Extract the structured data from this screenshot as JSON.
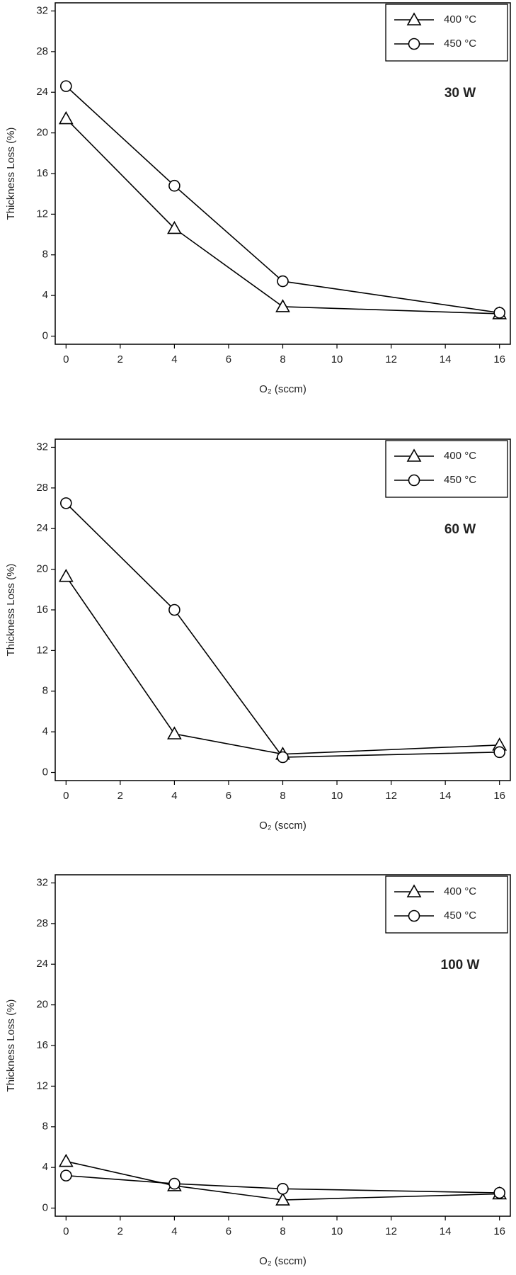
{
  "chart_data": [
    {
      "type": "line",
      "annotation": "30 W",
      "x_label": "O₂ (sccm)",
      "y_label": "Thickness Loss (%)",
      "x": [
        0,
        4,
        8,
        16
      ],
      "series": [
        {
          "name": "400 °C",
          "color": "#000000",
          "marker": "triangle",
          "values": [
            21.4,
            10.6,
            2.9,
            2.2
          ]
        },
        {
          "name": "450 °C",
          "color": "#000000",
          "marker": "circle",
          "values": [
            24.6,
            14.8,
            5.4,
            2.3
          ]
        }
      ],
      "xlim": [
        -0.4,
        16.4
      ],
      "xticks": [
        0,
        2,
        4,
        6,
        8,
        10,
        12,
        14,
        16
      ],
      "ylim": [
        -0.8,
        32.8
      ],
      "yticks": [
        0,
        4,
        8,
        12,
        16,
        20,
        24,
        28,
        32
      ],
      "legend": "upper right"
    },
    {
      "type": "line",
      "annotation": "60 W",
      "x_label": "O₂ (sccm)",
      "y_label": "Thickness Loss (%)",
      "x": [
        0,
        4,
        8,
        16
      ],
      "series": [
        {
          "name": "400 °C",
          "color": "#000000",
          "marker": "triangle",
          "values": [
            19.3,
            3.8,
            1.8,
            2.7
          ]
        },
        {
          "name": "450 °C",
          "color": "#000000",
          "marker": "circle",
          "values": [
            26.5,
            16.0,
            1.5,
            2.0
          ]
        }
      ],
      "xlim": [
        -0.4,
        16.4
      ],
      "xticks": [
        0,
        2,
        4,
        6,
        8,
        10,
        12,
        14,
        16
      ],
      "ylim": [
        -0.8,
        32.8
      ],
      "yticks": [
        0,
        4,
        8,
        12,
        16,
        20,
        24,
        28,
        32
      ],
      "legend": "upper right"
    },
    {
      "type": "line",
      "annotation": "100 W",
      "x_label": "O₂ (sccm)",
      "y_label": "Thickness Loss (%)",
      "x": [
        0,
        4,
        8,
        16
      ],
      "series": [
        {
          "name": "400 °C",
          "color": "#000000",
          "marker": "triangle",
          "values": [
            4.6,
            2.2,
            0.8,
            1.4
          ]
        },
        {
          "name": "450 °C",
          "color": "#000000",
          "marker": "circle",
          "values": [
            3.2,
            2.4,
            1.9,
            1.5
          ]
        }
      ],
      "xlim": [
        -0.4,
        16.4
      ],
      "xticks": [
        0,
        2,
        4,
        6,
        8,
        10,
        12,
        14,
        16
      ],
      "ylim": [
        -0.8,
        32.8
      ],
      "yticks": [
        0,
        4,
        8,
        12,
        16,
        20,
        24,
        28,
        32
      ],
      "legend": "upper right"
    }
  ]
}
